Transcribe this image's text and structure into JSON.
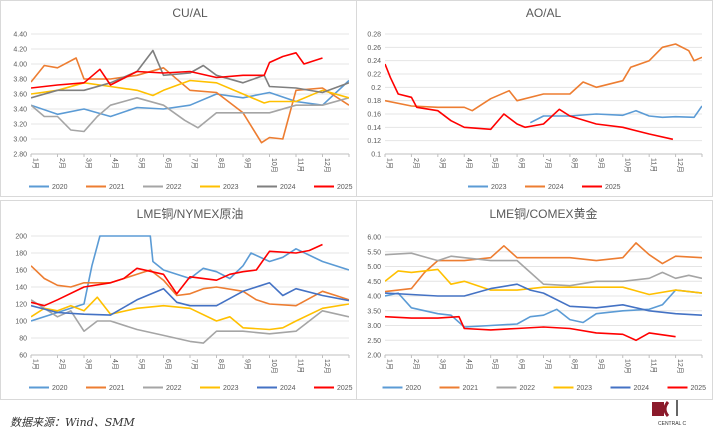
{
  "footer": {
    "source": "数据来源：Wind、SMM"
  },
  "logo": {
    "text": "CENTRAL C"
  },
  "months": [
    "1月",
    "2月",
    "3月",
    "4月",
    "5月",
    "6月",
    "7月",
    "8月",
    "9月",
    "10月",
    "11月",
    "12月"
  ],
  "chart_data": [
    {
      "type": "line",
      "title": "CU/AL",
      "ylim": [
        2.8,
        4.4
      ],
      "ystep": 0.2,
      "ydecimals": 2,
      "grid": true,
      "legend": "bottom",
      "series": [
        {
          "name": "2020",
          "color": "#5b9bd5",
          "x": [
            1,
            2,
            3,
            4,
            5,
            6,
            7,
            8,
            9,
            10,
            11,
            12,
            13
          ],
          "y": [
            3.45,
            3.33,
            3.4,
            3.3,
            3.42,
            3.4,
            3.45,
            3.6,
            3.55,
            3.62,
            3.5,
            3.45,
            3.78
          ]
        },
        {
          "name": "2021",
          "color": "#ed7d31",
          "x": [
            1,
            1.5,
            2,
            2.7,
            3,
            4,
            5,
            6,
            7,
            8,
            9,
            9.7,
            10,
            10.5,
            11,
            12,
            13
          ],
          "y": [
            3.76,
            3.98,
            3.95,
            4.08,
            3.8,
            3.8,
            3.85,
            3.95,
            3.65,
            3.62,
            3.35,
            2.95,
            3.02,
            3.0,
            3.65,
            3.68,
            3.45
          ]
        },
        {
          "name": "2022",
          "color": "#a5a5a5",
          "x": [
            1,
            1.5,
            2,
            2.5,
            3,
            3.5,
            4,
            5,
            6,
            6.8,
            7.3,
            8,
            9,
            10,
            11,
            12,
            13
          ],
          "y": [
            3.45,
            3.3,
            3.3,
            3.12,
            3.1,
            3.3,
            3.45,
            3.55,
            3.45,
            3.25,
            3.15,
            3.35,
            3.35,
            3.35,
            3.45,
            3.45,
            3.55
          ]
        },
        {
          "name": "2023",
          "color": "#ffc000",
          "x": [
            1,
            2,
            3,
            4,
            5,
            5.6,
            6,
            7,
            8,
            9,
            9.8,
            10,
            11,
            12,
            13
          ],
          "y": [
            3.6,
            3.65,
            3.75,
            3.7,
            3.65,
            3.58,
            3.65,
            3.78,
            3.75,
            3.6,
            3.48,
            3.5,
            3.5,
            3.65,
            3.55
          ]
        },
        {
          "name": "2024",
          "color": "#7f7f7f",
          "x": [
            1,
            2,
            3,
            4,
            5,
            5.6,
            6,
            7,
            7.5,
            8,
            9,
            9.8,
            10,
            11,
            12,
            13
          ],
          "y": [
            3.55,
            3.65,
            3.65,
            3.75,
            3.9,
            4.18,
            3.85,
            3.88,
            3.98,
            3.85,
            3.75,
            3.85,
            3.7,
            3.68,
            3.62,
            3.75
          ]
        },
        {
          "name": "2025",
          "color": "#ff0000",
          "x": [
            1,
            2,
            3,
            3.6,
            4,
            5,
            6,
            7,
            8,
            9,
            9.8,
            10,
            10.5,
            11,
            11.3,
            12
          ],
          "y": [
            3.68,
            3.72,
            3.75,
            3.93,
            3.72,
            3.9,
            3.88,
            3.9,
            3.82,
            3.85,
            3.85,
            4.02,
            4.1,
            4.15,
            4.0,
            4.08
          ]
        }
      ]
    },
    {
      "type": "line",
      "title": "AO/AL",
      "ylim": [
        0.1,
        0.28
      ],
      "ystep": 0.02,
      "ydecimals": -1,
      "grid": true,
      "legend": "bottom",
      "series": [
        {
          "name": "2023",
          "color": "#5b9bd5",
          "x": [
            6.5,
            7,
            8,
            9,
            10,
            10.5,
            11,
            11.5,
            12,
            12.7,
            13
          ],
          "y": [
            0.147,
            0.157,
            0.157,
            0.16,
            0.158,
            0.165,
            0.157,
            0.155,
            0.156,
            0.155,
            0.172
          ]
        },
        {
          "name": "2024",
          "color": "#ed7d31",
          "x": [
            1,
            2,
            3,
            4,
            4.3,
            5,
            5.7,
            6,
            7,
            8,
            8.5,
            9,
            10,
            10.3,
            11,
            11.5,
            12,
            12.5,
            12.7,
            13
          ],
          "y": [
            0.18,
            0.172,
            0.17,
            0.17,
            0.165,
            0.183,
            0.195,
            0.18,
            0.19,
            0.19,
            0.208,
            0.2,
            0.21,
            0.23,
            0.24,
            0.26,
            0.265,
            0.255,
            0.24,
            0.245
          ]
        },
        {
          "name": "2025",
          "color": "#ff0000",
          "x": [
            1,
            1.2,
            1.5,
            2,
            2.2,
            3,
            3.5,
            4,
            5,
            5.5,
            6,
            6.3,
            7,
            7.6,
            8,
            9,
            10,
            11,
            11.9
          ],
          "y": [
            0.235,
            0.215,
            0.19,
            0.185,
            0.17,
            0.165,
            0.15,
            0.14,
            0.137,
            0.16,
            0.145,
            0.14,
            0.145,
            0.167,
            0.157,
            0.145,
            0.14,
            0.13,
            0.122
          ]
        }
      ]
    },
    {
      "type": "line",
      "title": "LME铜/NYMEX原油",
      "ylim": [
        60,
        200
      ],
      "ystep": 20,
      "ydecimals": 0,
      "grid": true,
      "legend": "bottom",
      "series": [
        {
          "name": "2020",
          "color": "#5b9bd5",
          "x": [
            1,
            2,
            3,
            3.3,
            3.6,
            4,
            5,
            5.5,
            5.6,
            6,
            7,
            7.5,
            8,
            8.5,
            9,
            9.3,
            10,
            10.5,
            11,
            12,
            13
          ],
          "y": [
            100,
            110,
            120,
            165,
            200,
            200,
            200,
            200,
            170,
            160,
            150,
            162,
            158,
            150,
            165,
            180,
            170,
            175,
            185,
            170,
            160
          ]
        },
        {
          "name": "2021",
          "color": "#ed7d31",
          "x": [
            1,
            1.5,
            2,
            2.5,
            3,
            4,
            5,
            5.5,
            6,
            6.5,
            7,
            7.5,
            8,
            9,
            9.5,
            10,
            11,
            12,
            12.5,
            13
          ],
          "y": [
            165,
            150,
            142,
            140,
            145,
            145,
            155,
            160,
            148,
            130,
            132,
            138,
            140,
            135,
            125,
            120,
            118,
            135,
            130,
            125
          ]
        },
        {
          "name": "2022",
          "color": "#a5a5a5",
          "x": [
            1,
            2,
            2.5,
            3,
            3.5,
            4,
            5,
            6,
            7,
            7.5,
            8,
            9,
            10,
            11,
            12,
            13
          ],
          "y": [
            125,
            105,
            112,
            88,
            100,
            100,
            90,
            83,
            76,
            74,
            88,
            88,
            85,
            88,
            112,
            105
          ]
        },
        {
          "name": "2023",
          "color": "#ffc000",
          "x": [
            1,
            1.5,
            2,
            2.5,
            3,
            3.5,
            4,
            5,
            6,
            7,
            8,
            8.5,
            9,
            10,
            10.5,
            11,
            12,
            13
          ],
          "y": [
            105,
            115,
            112,
            118,
            112,
            128,
            108,
            115,
            118,
            115,
            100,
            105,
            92,
            90,
            92,
            100,
            115,
            120
          ]
        },
        {
          "name": "2024",
          "color": "#4472c4",
          "x": [
            1,
            2,
            3,
            4,
            5,
            6,
            6.5,
            7,
            8,
            9,
            10,
            10.5,
            11,
            12,
            13
          ],
          "y": [
            118,
            110,
            108,
            107,
            125,
            138,
            122,
            118,
            118,
            135,
            145,
            130,
            138,
            130,
            124
          ]
        },
        {
          "name": "2025",
          "color": "#ff0000",
          "x": [
            1,
            1.5,
            2,
            3,
            4,
            4.5,
            5,
            6,
            6.5,
            7,
            8,
            8.5,
            9,
            9.5,
            10,
            11,
            11.5,
            12
          ],
          "y": [
            122,
            118,
            125,
            140,
            145,
            150,
            162,
            155,
            132,
            152,
            148,
            155,
            158,
            160,
            182,
            180,
            183,
            190
          ]
        }
      ]
    },
    {
      "type": "line",
      "title": "LME铜/COMEX黄金",
      "ylim": [
        2.0,
        6.0
      ],
      "ystep": 0.5,
      "ydecimals": 2,
      "grid": true,
      "legend": "bottom",
      "series": [
        {
          "name": "2020",
          "color": "#5b9bd5",
          "x": [
            1,
            1.5,
            2,
            3,
            3.5,
            4,
            5,
            6,
            6.5,
            7,
            7.5,
            8,
            8.5,
            9,
            10,
            11,
            11.5,
            12,
            13
          ],
          "y": [
            4.0,
            4.1,
            3.6,
            3.4,
            3.35,
            2.95,
            3.0,
            3.05,
            3.3,
            3.35,
            3.55,
            3.2,
            3.1,
            3.4,
            3.5,
            3.55,
            3.7,
            4.2,
            4.1
          ]
        },
        {
          "name": "2021",
          "color": "#ed7d31",
          "x": [
            1,
            2,
            2.5,
            3,
            4,
            5,
            5.5,
            6,
            7,
            8,
            9,
            10,
            10.5,
            11,
            11.5,
            12,
            13
          ],
          "y": [
            4.15,
            4.25,
            4.8,
            5.2,
            5.2,
            5.3,
            5.7,
            5.3,
            5.3,
            5.3,
            5.2,
            5.3,
            5.8,
            5.4,
            5.1,
            5.35,
            5.3
          ]
        },
        {
          "name": "2022",
          "color": "#a5a5a5",
          "x": [
            1,
            2,
            3,
            3.5,
            4,
            5,
            6,
            6.5,
            7,
            8,
            9,
            10,
            11,
            11.5,
            12,
            12.5,
            13
          ],
          "y": [
            5.4,
            5.45,
            5.2,
            5.35,
            5.3,
            5.2,
            5.2,
            4.8,
            4.4,
            4.35,
            4.5,
            4.5,
            4.6,
            4.8,
            4.6,
            4.7,
            4.6
          ]
        },
        {
          "name": "2023",
          "color": "#ffc000",
          "x": [
            1,
            1.5,
            2,
            2.5,
            3,
            3.5,
            4,
            5,
            6,
            7,
            8,
            9,
            10,
            11,
            12,
            13
          ],
          "y": [
            4.5,
            4.85,
            4.8,
            4.85,
            4.9,
            4.4,
            4.5,
            4.2,
            4.2,
            4.3,
            4.3,
            4.3,
            4.3,
            4.05,
            4.2,
            4.1
          ]
        },
        {
          "name": "2024",
          "color": "#4472c4",
          "x": [
            1,
            2,
            3,
            4,
            5,
            6,
            6.5,
            7,
            8,
            9,
            10,
            11,
            12,
            13
          ],
          "y": [
            4.1,
            4.05,
            4.0,
            4.0,
            4.25,
            4.4,
            4.2,
            4.1,
            3.65,
            3.6,
            3.7,
            3.5,
            3.4,
            3.35
          ]
        },
        {
          "name": "2025",
          "color": "#ff0000",
          "x": [
            1,
            2,
            3,
            3.8,
            4,
            5,
            6,
            7,
            8,
            9,
            10,
            10.5,
            11,
            12
          ],
          "y": [
            3.3,
            3.25,
            3.25,
            3.3,
            2.9,
            2.85,
            2.9,
            2.95,
            2.9,
            2.75,
            2.7,
            2.5,
            2.75,
            2.62
          ]
        }
      ]
    }
  ]
}
